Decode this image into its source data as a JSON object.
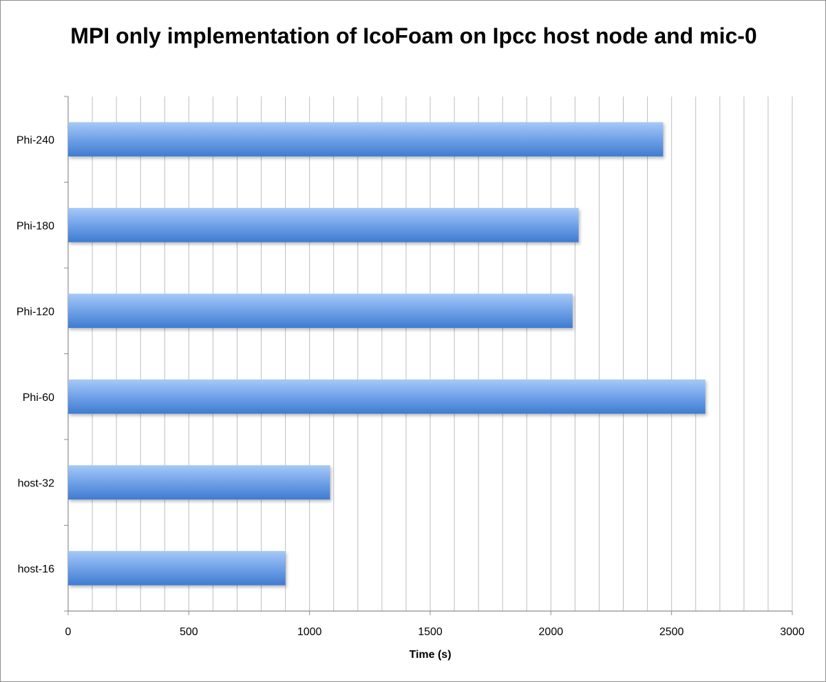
{
  "chart_data": {
    "type": "bar",
    "orientation": "horizontal",
    "title": "MPI only implementation of IcoFoam on Ipcc host node and mic-0",
    "xlabel": "Time (s)",
    "ylabel": "",
    "categories": [
      "host-16",
      "host-32",
      "Phi-60",
      "Phi-120",
      "Phi-180",
      "Phi-240"
    ],
    "values": [
      900,
      1085,
      2640,
      2090,
      2115,
      2465
    ],
    "xlim": [
      0,
      3000
    ],
    "x_ticks": [
      0,
      500,
      1000,
      1500,
      2000,
      2500,
      3000
    ],
    "x_tick_labels": [
      "0",
      "500",
      "1000",
      "1500",
      "2000",
      "2500",
      "3000"
    ],
    "minor_x_step": 100,
    "grid": true,
    "legend": "none",
    "colors": {
      "bar_light": "#a6c9f7",
      "bar_mid": "#75a5ea",
      "bar_dark": "#3f7bd0",
      "grid": "#bdbdbd",
      "axis": "#8c8c8c"
    }
  }
}
